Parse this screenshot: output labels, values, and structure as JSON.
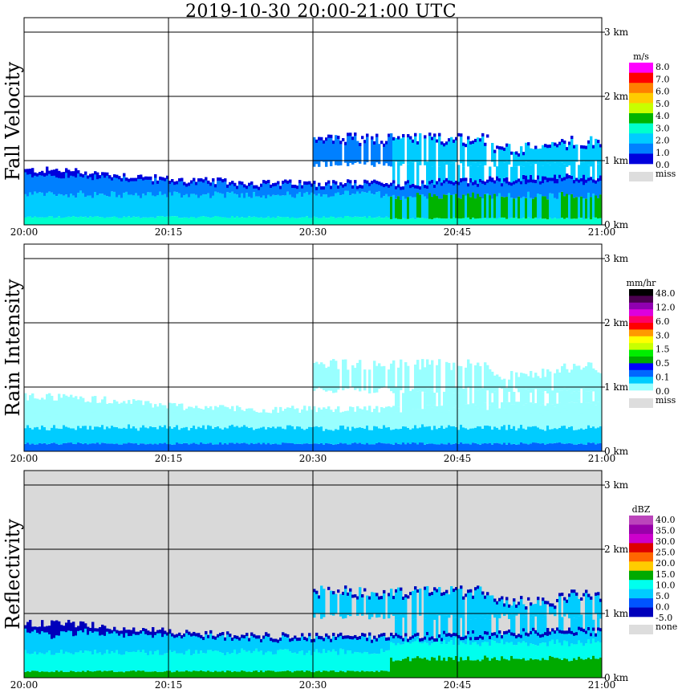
{
  "title": "2019-10-30   20:00-21:00 UTC",
  "time_ticks": [
    "20:00",
    "20:15",
    "20:30",
    "20:45",
    "21:00"
  ],
  "height_ticks": [
    "0 km",
    "1 km",
    "2 km",
    "3 km"
  ],
  "colors": {
    "none_bg": "#d9d9d9",
    "grid": "#000000"
  },
  "chart_data": [
    {
      "type": "heatmap",
      "name": "Fall Velocity",
      "ylabel": "Fall Velocity",
      "x_range_utc": [
        "20:00",
        "21:00"
      ],
      "y_range_km": [
        0,
        3.2
      ],
      "grid": true,
      "background": "#ffffff",
      "colorbar": {
        "unit": "m/s",
        "labels": [
          "8.0",
          "7.0",
          "6.0",
          "5.0",
          "4.0",
          "3.0",
          "2.0",
          "1.0",
          "0.0"
        ],
        "colors": [
          "#ff00ff",
          "#ff0000",
          "#ff8000",
          "#ffcc00",
          "#c8ff00",
          "#00b400",
          "#00ffcc",
          "#00ccff",
          "#0080ff",
          "#0000dd"
        ],
        "missing_label": "miss",
        "missing_color": "#dddddd"
      },
      "echo": {
        "low_echo_top_km": [
          0.85,
          0.85,
          0.8,
          0.75,
          0.7,
          0.68,
          0.65,
          0.65,
          0.65,
          0.65,
          0.65,
          0.68,
          0.7,
          0.72,
          0.75,
          0.75
        ],
        "upper_layer": {
          "start_utc": "20:30",
          "end_utc": "21:00",
          "top_km": 1.35,
          "base_km": 0.95
        },
        "dominant": "light blue 0–2 m/s near surface, dark blue 0–1 m/s at echo top, green 3–4 m/s below 0.8 km after 20:38"
      }
    },
    {
      "type": "heatmap",
      "name": "Rain Intensity",
      "ylabel": "Rain Intensity",
      "x_range_utc": [
        "20:00",
        "21:00"
      ],
      "y_range_km": [
        0,
        3.2
      ],
      "grid": true,
      "background": "#ffffff",
      "colorbar": {
        "unit": "mm/hr",
        "labels": [
          "48.0",
          "12.0",
          "6.0",
          "3.0",
          "1.5",
          "0.5",
          "0.1",
          "0.0"
        ],
        "colors": [
          "#000000",
          "#4b0050",
          "#9000b0",
          "#dd00dd",
          "#ff0066",
          "#ff0000",
          "#ff9900",
          "#ffff00",
          "#c8ff00",
          "#00ee00",
          "#00aa00",
          "#0000ff",
          "#0066ff",
          "#00ccff",
          "#99ffff"
        ],
        "missing_label": "miss",
        "missing_color": "#dddddd"
      },
      "echo": {
        "dominant": "0.1–0.5 mm/hr (cyan/light blue) throughout, 0.5 mm/hr (blue) below 0.4 km"
      }
    },
    {
      "type": "heatmap",
      "name": "Reflectivity",
      "ylabel": "Reflectivity",
      "x_range_utc": [
        "20:00",
        "21:00"
      ],
      "y_range_km": [
        0,
        3.2
      ],
      "grid": true,
      "background": "#d9d9d9",
      "colorbar": {
        "unit": "dBZ",
        "labels": [
          "40.0",
          "35.0",
          "30.0",
          "25.0",
          "20.0",
          "15.0",
          "10.0",
          "5.0",
          "0.0",
          "-5.0"
        ],
        "colors": [
          "#bb44bb",
          "#9900aa",
          "#cc00cc",
          "#dd0000",
          "#ff6600",
          "#ffcc00",
          "#00aa00",
          "#00ffee",
          "#00ccff",
          "#0055ff",
          "#0000bb"
        ],
        "missing_label": "none",
        "missing_color": "#dddddd"
      },
      "echo": {
        "dominant": "0–10 dBZ in echo, dark blue -5 dBZ at echo top, green 15 dBZ near surface"
      }
    }
  ]
}
